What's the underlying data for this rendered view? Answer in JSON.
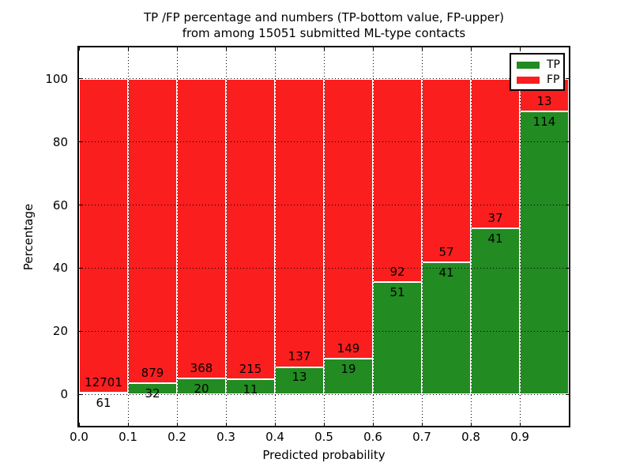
{
  "chart_data": {
    "type": "bar",
    "stacked": true,
    "normalized": "percent",
    "title_line1": "TP /FP percentage and numbers (TP-bottom value, FP-upper)",
    "title_line2": "from among 15051 submitted ML-type contacts",
    "xlabel": "Predicted probability",
    "ylabel": "Percentage",
    "x_tick_labels": [
      "0.0",
      "0.1",
      "0.2",
      "0.3",
      "0.4",
      "0.5",
      "0.6",
      "0.7",
      "0.8",
      "0.9"
    ],
    "y_tick_labels": [
      "0",
      "20",
      "40",
      "60",
      "80",
      "100"
    ],
    "y_tick_values": [
      0,
      20,
      40,
      60,
      80,
      100
    ],
    "xlim": [
      0.0,
      1.0
    ],
    "ylim": [
      -10,
      110
    ],
    "grid": "dotted",
    "total_contacts": 15051,
    "legend": {
      "position": "upper right",
      "entries": [
        {
          "label": "TP",
          "color": "#228b22"
        },
        {
          "label": "FP",
          "color": "#fa1e1e"
        }
      ]
    },
    "colors": {
      "tp": "#228b22",
      "fp": "#fa1e1e",
      "grid": "#000000",
      "text": "#000000"
    },
    "bins": [
      {
        "range": [
          0.0,
          0.1
        ],
        "tp": 61,
        "fp": 12701
      },
      {
        "range": [
          0.1,
          0.2
        ],
        "tp": 32,
        "fp": 879
      },
      {
        "range": [
          0.2,
          0.3
        ],
        "tp": 20,
        "fp": 368
      },
      {
        "range": [
          0.3,
          0.4
        ],
        "tp": 11,
        "fp": 215
      },
      {
        "range": [
          0.4,
          0.5
        ],
        "tp": 13,
        "fp": 137
      },
      {
        "range": [
          0.5,
          0.6
        ],
        "tp": 19,
        "fp": 149
      },
      {
        "range": [
          0.6,
          0.7
        ],
        "tp": 51,
        "fp": 92
      },
      {
        "range": [
          0.7,
          0.8
        ],
        "tp": 41,
        "fp": 57
      },
      {
        "range": [
          0.8,
          0.9
        ],
        "tp": 41,
        "fp": 37
      },
      {
        "range": [
          0.9,
          1.0
        ],
        "tp": 114,
        "fp": 13
      }
    ]
  }
}
